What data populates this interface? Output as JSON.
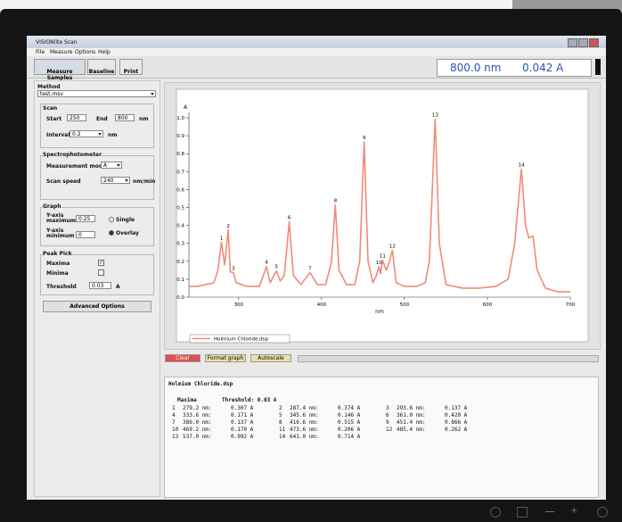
{
  "window": {
    "title": "VISIONlite Scan"
  },
  "menu": [
    "File",
    "Measure",
    "Options",
    "Help"
  ],
  "toolbar": [
    "Measure Samples",
    "Baseline",
    "Print"
  ],
  "readout": {
    "wavelength": "800.0 nm",
    "absorbance": "0.042 A"
  },
  "settings": {
    "method_label": "Method",
    "method": "test.msv",
    "scan": {
      "title": "Scan",
      "start_label": "Start",
      "start": "250",
      "end_label": "End",
      "end": "800",
      "end_unit": "nm",
      "interval_label": "Interval",
      "interval": "0.2",
      "interval_unit": "nm"
    },
    "spectrophotometer": {
      "title": "Spectrophotometer",
      "mode_label": "Measurement mode",
      "mode": "A",
      "speed_label": "Scan speed",
      "speed": "240",
      "speed_unit": "nm/min"
    },
    "graph": {
      "title": "Graph",
      "ymax_label": "Y-axis maximum",
      "ymax": "0.25",
      "ymin_label": "Y-axis minimum",
      "ymin": "0",
      "single": "Single",
      "overlay": "Overlay"
    },
    "peak_pick": {
      "title": "Peak Pick",
      "maxima": "Maxima",
      "minima": "Minima",
      "threshold_label": "Threshold",
      "threshold": "0.03",
      "threshold_unit": "A"
    },
    "advanced": "Advanced Options"
  },
  "chart_data": {
    "type": "line",
    "x_label": "nm",
    "y_label": "A",
    "x": [
      240,
      250,
      260,
      270,
      275,
      279.2,
      283,
      287.4,
      290,
      293.6,
      297,
      310,
      325,
      333.6,
      338,
      345.6,
      350,
      355,
      361,
      366,
      375,
      386,
      395,
      405,
      412,
      416.6,
      421,
      430,
      440,
      446,
      451.4,
      456,
      462,
      466,
      469.2,
      471,
      473.6,
      478,
      482,
      485.4,
      490,
      500,
      515,
      525,
      530,
      537,
      542,
      550,
      570,
      590,
      610,
      625,
      633,
      641,
      646,
      650,
      655,
      660,
      670,
      685,
      700
    ],
    "series": [
      {
        "name": "Holmium Chloride.dsp",
        "color": "#f08a7a",
        "values": [
          0.06,
          0.06,
          0.07,
          0.08,
          0.15,
          0.307,
          0.18,
          0.374,
          0.14,
          0.137,
          0.08,
          0.06,
          0.06,
          0.171,
          0.08,
          0.146,
          0.09,
          0.12,
          0.42,
          0.12,
          0.07,
          0.137,
          0.07,
          0.07,
          0.2,
          0.515,
          0.15,
          0.07,
          0.07,
          0.2,
          0.866,
          0.2,
          0.08,
          0.12,
          0.17,
          0.13,
          0.206,
          0.15,
          0.2,
          0.262,
          0.08,
          0.06,
          0.06,
          0.08,
          0.2,
          0.992,
          0.3,
          0.07,
          0.05,
          0.05,
          0.06,
          0.1,
          0.3,
          0.714,
          0.4,
          0.33,
          0.34,
          0.15,
          0.05,
          0.03,
          0.03
        ]
      }
    ],
    "peaks": [
      {
        "label": "1",
        "x": 279.2,
        "y": 0.307
      },
      {
        "label": "2",
        "x": 287.4,
        "y": 0.374
      },
      {
        "label": "3",
        "x": 293.6,
        "y": 0.137
      },
      {
        "label": "4",
        "x": 333.6,
        "y": 0.171
      },
      {
        "label": "5",
        "x": 345.6,
        "y": 0.146
      },
      {
        "label": "6",
        "x": 361.0,
        "y": 0.42
      },
      {
        "label": "7",
        "x": 386.0,
        "y": 0.137
      },
      {
        "label": "8",
        "x": 416.6,
        "y": 0.515
      },
      {
        "label": "9",
        "x": 451.4,
        "y": 0.866
      },
      {
        "label": "10",
        "x": 469.2,
        "y": 0.17
      },
      {
        "label": "11",
        "x": 473.6,
        "y": 0.206
      },
      {
        "label": "12",
        "x": 485.4,
        "y": 0.262
      },
      {
        "label": "13",
        "x": 537.0,
        "y": 0.992
      },
      {
        "label": "14",
        "x": 641.0,
        "y": 0.714
      }
    ],
    "xlim": [
      240,
      700
    ],
    "xticks": [
      300,
      400,
      500,
      600,
      700
    ],
    "ylim": [
      0,
      1
    ],
    "yticks": [
      {
        "value": 0,
        "label": "0.0"
      },
      0.1,
      0.2,
      0.3,
      0.4,
      0.5,
      0.6,
      0.7,
      0.8,
      0.9,
      {
        "value": 1,
        "label": "1.0"
      }
    ],
    "grid": false
  },
  "buttons": [
    "Clear",
    "Format graph",
    "Autoscale"
  ],
  "results": {
    "file": "Holmium Chloride.dsp",
    "heading": "Maxima",
    "threshold": "Threshold: 0.03 A",
    "entries": [
      [
        "1",
        "279.2 nm:",
        "0.307 A"
      ],
      [
        "2",
        "287.4 nm:",
        "0.374 A"
      ],
      [
        "3",
        "293.6 nm:",
        "0.137 A"
      ],
      [
        "4",
        "333.6 nm:",
        "0.171 A"
      ],
      [
        "5",
        "345.6 nm:",
        "0.146 A"
      ],
      [
        "6",
        "361.0 nm:",
        "0.420 A"
      ],
      [
        "7",
        "386.0 nm:",
        "0.137 A"
      ],
      [
        "8",
        "416.6 nm:",
        "0.515 A"
      ],
      [
        "9",
        "451.4 nm:",
        "0.866 A"
      ],
      [
        "10",
        "469.2 nm:",
        "0.170 A"
      ],
      [
        "11",
        "473.6 nm:",
        "0.206 A"
      ],
      [
        "12",
        "485.4 nm:",
        "0.262 A"
      ],
      [
        "13",
        "537.0 nm:",
        "0.992 A"
      ],
      [
        "14",
        "641.0 nm:",
        "0.714 A"
      ]
    ]
  }
}
